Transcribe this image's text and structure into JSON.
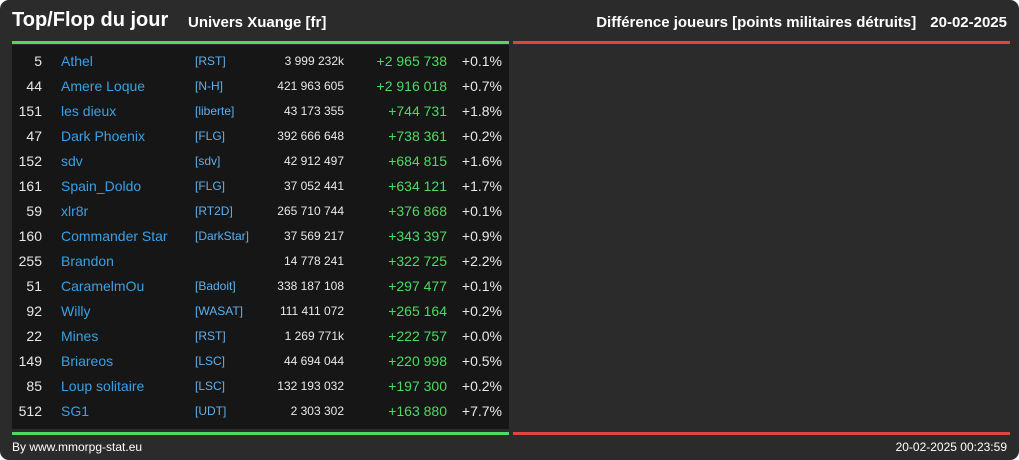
{
  "header": {
    "title": "Top/Flop du jour",
    "universe": "Univers Xuange [fr]",
    "category": "Différence joueurs [points militaires détruits]",
    "date": "20-02-2025"
  },
  "colors": {
    "top_accent": "#4cd964",
    "flop_accent": "#e0443c",
    "name_link": "#3aa0e6",
    "alliance_link": "#5fb0ec",
    "positive": "#4cd964"
  },
  "top_rows": [
    {
      "rank": "5",
      "name": "Athel",
      "alliance": "[RST]",
      "points": "3 999 232k",
      "diff": "+2 965 738",
      "pct": "+0.1%"
    },
    {
      "rank": "44",
      "name": "Amere Loque",
      "alliance": "[N-H]",
      "points": "421 963 605",
      "diff": "+2 916 018",
      "pct": "+0.7%"
    },
    {
      "rank": "151",
      "name": "les dieux",
      "alliance": "[liberte]",
      "points": "43 173 355",
      "diff": "+744 731",
      "pct": "+1.8%"
    },
    {
      "rank": "47",
      "name": "Dark Phoenix",
      "alliance": "[FLG]",
      "points": "392 666 648",
      "diff": "+738 361",
      "pct": "+0.2%"
    },
    {
      "rank": "152",
      "name": "sdv",
      "alliance": "[sdv]",
      "points": "42 912 497",
      "diff": "+684 815",
      "pct": "+1.6%"
    },
    {
      "rank": "161",
      "name": "Spain_Doldo",
      "alliance": "[FLG]",
      "points": "37 052 441",
      "diff": "+634 121",
      "pct": "+1.7%"
    },
    {
      "rank": "59",
      "name": "xlr8r",
      "alliance": "[RT2D]",
      "points": "265 710 744",
      "diff": "+376 868",
      "pct": "+0.1%"
    },
    {
      "rank": "160",
      "name": "Commander Star",
      "alliance": "[DarkStar]",
      "points": "37 569 217",
      "diff": "+343 397",
      "pct": "+0.9%"
    },
    {
      "rank": "255",
      "name": "Brandon",
      "alliance": "",
      "points": "14 778 241",
      "diff": "+322 725",
      "pct": "+2.2%"
    },
    {
      "rank": "51",
      "name": "CaramelmOu",
      "alliance": "[Badoit]",
      "points": "338 187 108",
      "diff": "+297 477",
      "pct": "+0.1%"
    },
    {
      "rank": "92",
      "name": "Willy",
      "alliance": "[WASAT]",
      "points": "111 411 072",
      "diff": "+265 164",
      "pct": "+0.2%"
    },
    {
      "rank": "22",
      "name": "Mines",
      "alliance": "[RST]",
      "points": "1 269 771k",
      "diff": "+222 757",
      "pct": "+0.0%"
    },
    {
      "rank": "149",
      "name": "Briareos",
      "alliance": "[LSC]",
      "points": "44 694 044",
      "diff": "+220 998",
      "pct": "+0.5%"
    },
    {
      "rank": "85",
      "name": "Loup solitaire",
      "alliance": "[LSC]",
      "points": "132 193 032",
      "diff": "+197 300",
      "pct": "+0.2%"
    },
    {
      "rank": "512",
      "name": "SG1",
      "alliance": "[UDT]",
      "points": "2 303 302",
      "diff": "+163 880",
      "pct": "+7.7%"
    }
  ],
  "footer": {
    "credit": "By www.mmorpg-stat.eu",
    "timestamp": "20-02-2025 00:23:59"
  }
}
